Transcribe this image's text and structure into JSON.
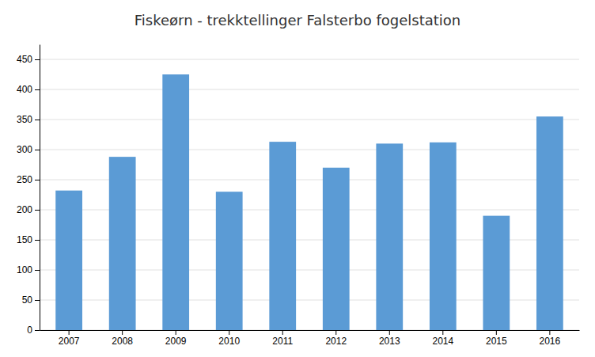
{
  "chart_data": {
    "type": "bar",
    "title": "Fiskeørn - trekktellinger Falsterbo fogelstation",
    "categories": [
      "2007",
      "2008",
      "2009",
      "2010",
      "2011",
      "2012",
      "2013",
      "2014",
      "2015",
      "2016"
    ],
    "values": [
      232,
      288,
      425,
      230,
      313,
      270,
      310,
      312,
      190,
      355
    ],
    "color": "#5B9BD5",
    "ylim": [
      0,
      475
    ],
    "yticks": [
      0,
      50,
      100,
      150,
      200,
      250,
      300,
      350,
      400,
      450
    ],
    "grid": true
  }
}
